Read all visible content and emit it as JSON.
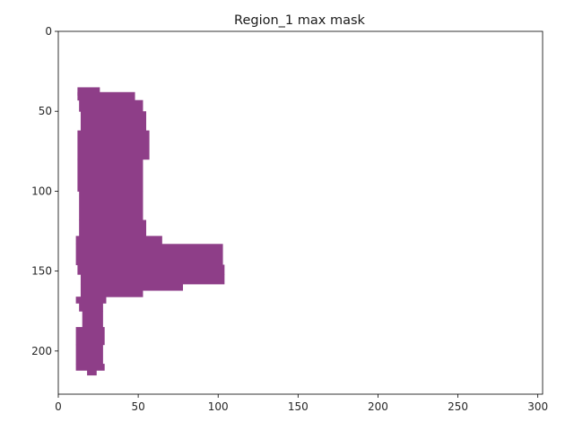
{
  "chart_data": {
    "type": "heatmap",
    "title": "Region_1 max mask",
    "xlabel": "",
    "ylabel": "",
    "xlim": [
      0,
      303
    ],
    "ylim": [
      227,
      0
    ],
    "x_ticks": [
      0,
      50,
      100,
      150,
      200,
      250,
      300
    ],
    "y_ticks": [
      0,
      50,
      100,
      150,
      200
    ],
    "x_tick_labels": [
      "0",
      "50",
      "100",
      "150",
      "200",
      "250",
      "300"
    ],
    "y_tick_labels": [
      "0",
      "50",
      "100",
      "150",
      "200"
    ],
    "mask_color": "#8e3e88",
    "background_color": "#ffffff",
    "mask_rows": [
      {
        "y0": 35,
        "y1": 40,
        "x0": 12,
        "x1": 26
      },
      {
        "y0": 38,
        "y1": 43,
        "x0": 12,
        "x1": 48
      },
      {
        "y0": 43,
        "y1": 50,
        "x0": 13,
        "x1": 53
      },
      {
        "y0": 50,
        "y1": 62,
        "x0": 14,
        "x1": 55
      },
      {
        "y0": 62,
        "y1": 80,
        "x0": 12,
        "x1": 57
      },
      {
        "y0": 80,
        "y1": 100,
        "x0": 12,
        "x1": 53
      },
      {
        "y0": 100,
        "y1": 118,
        "x0": 13,
        "x1": 53
      },
      {
        "y0": 118,
        "y1": 128,
        "x0": 13,
        "x1": 55
      },
      {
        "y0": 128,
        "y1": 133,
        "x0": 11,
        "x1": 65
      },
      {
        "y0": 133,
        "y1": 146,
        "x0": 11,
        "x1": 103
      },
      {
        "y0": 146,
        "y1": 152,
        "x0": 12,
        "x1": 104
      },
      {
        "y0": 152,
        "y1": 158,
        "x0": 14,
        "x1": 104
      },
      {
        "y0": 158,
        "y1": 162,
        "x0": 14,
        "x1": 78
      },
      {
        "y0": 162,
        "y1": 166,
        "x0": 14,
        "x1": 53
      },
      {
        "y0": 166,
        "y1": 170,
        "x0": 11,
        "x1": 30
      },
      {
        "y0": 170,
        "y1": 175,
        "x0": 13,
        "x1": 28
      },
      {
        "y0": 175,
        "y1": 185,
        "x0": 15,
        "x1": 28
      },
      {
        "y0": 185,
        "y1": 196,
        "x0": 11,
        "x1": 29
      },
      {
        "y0": 196,
        "y1": 208,
        "x0": 11,
        "x1": 28
      },
      {
        "y0": 208,
        "y1": 212,
        "x0": 11,
        "x1": 29
      },
      {
        "y0": 212,
        "y1": 215,
        "x0": 18,
        "x1": 24
      }
    ]
  }
}
